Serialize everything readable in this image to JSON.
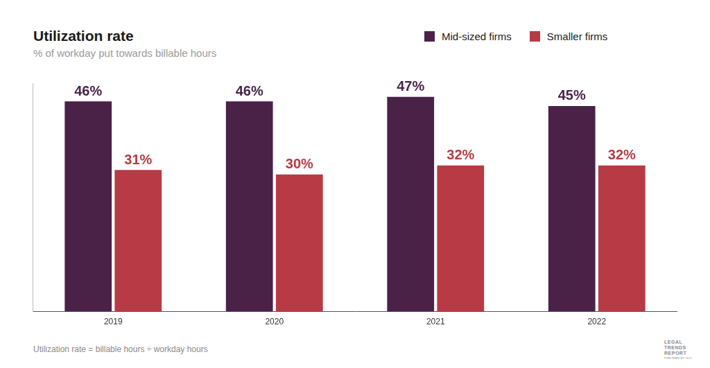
{
  "chart_data": {
    "type": "bar",
    "title": "Utilization rate",
    "subtitle": "% of workday put towards billable hours",
    "footnote": "Utilization rate = billable hours ÷ workday hours",
    "logo": {
      "lines": [
        "LEGAL",
        "TRENDS",
        "REPORT"
      ],
      "subtext": "PUBLISHED BY CLIO"
    },
    "categories": [
      "2019",
      "2020",
      "2021",
      "2022"
    ],
    "series": [
      {
        "name": "Mid-sized firms",
        "color": "#4a2248",
        "values": [
          46,
          46,
          47,
          45
        ],
        "value_labels": [
          "46%",
          "46%",
          "47%",
          "45%"
        ]
      },
      {
        "name": "Smaller firms",
        "color": "#b83a44",
        "values": [
          31,
          30,
          32,
          32
        ],
        "value_labels": [
          "31%",
          "30%",
          "32%",
          "32%"
        ]
      }
    ],
    "ylim": [
      0,
      50
    ],
    "grid": false,
    "legend": "top-right",
    "data_labels": true,
    "tick_labels": "x"
  }
}
